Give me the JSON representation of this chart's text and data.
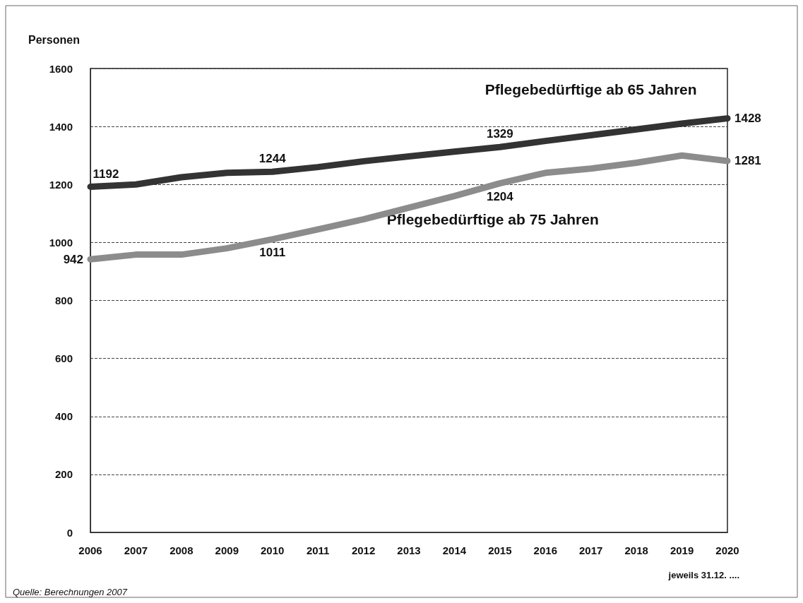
{
  "chart_data": {
    "type": "line",
    "ylabel": "Personen",
    "categories": [
      "2006",
      "2007",
      "2008",
      "2009",
      "2010",
      "2011",
      "2012",
      "2013",
      "2014",
      "2015",
      "2016",
      "2017",
      "2018",
      "2019",
      "2020"
    ],
    "series": [
      {
        "name": "Pflegebedürftige ab 65 Jahren",
        "color": "#333333",
        "values": [
          1192,
          1200,
          1225,
          1240,
          1244,
          1260,
          1280,
          1297,
          1313,
          1329,
          1350,
          1370,
          1390,
          1410,
          1428
        ],
        "value_labels": [
          "1192",
          null,
          null,
          null,
          "1244",
          null,
          null,
          null,
          null,
          "1329",
          null,
          null,
          null,
          null,
          "1428"
        ]
      },
      {
        "name": "Pflegebedürftige ab 75 Jahren",
        "color": "#8c8c8c",
        "values": [
          942,
          958,
          958,
          980,
          1011,
          1045,
          1080,
          1120,
          1160,
          1204,
          1240,
          1255,
          1275,
          1300,
          1281
        ],
        "value_labels": [
          "942",
          null,
          null,
          null,
          "1011",
          null,
          null,
          null,
          null,
          "1204",
          null,
          null,
          null,
          null,
          "1281"
        ]
      }
    ],
    "ylim": [
      0,
      1600
    ],
    "yticks": [
      0,
      200,
      400,
      600,
      800,
      1000,
      1200,
      1400,
      1600
    ],
    "grid": "y",
    "legend": false,
    "marker": "none",
    "line_style": "solid",
    "annotations": [
      "jeweils 31.12. ....",
      "Quelle: Berechnungen 2007"
    ]
  }
}
